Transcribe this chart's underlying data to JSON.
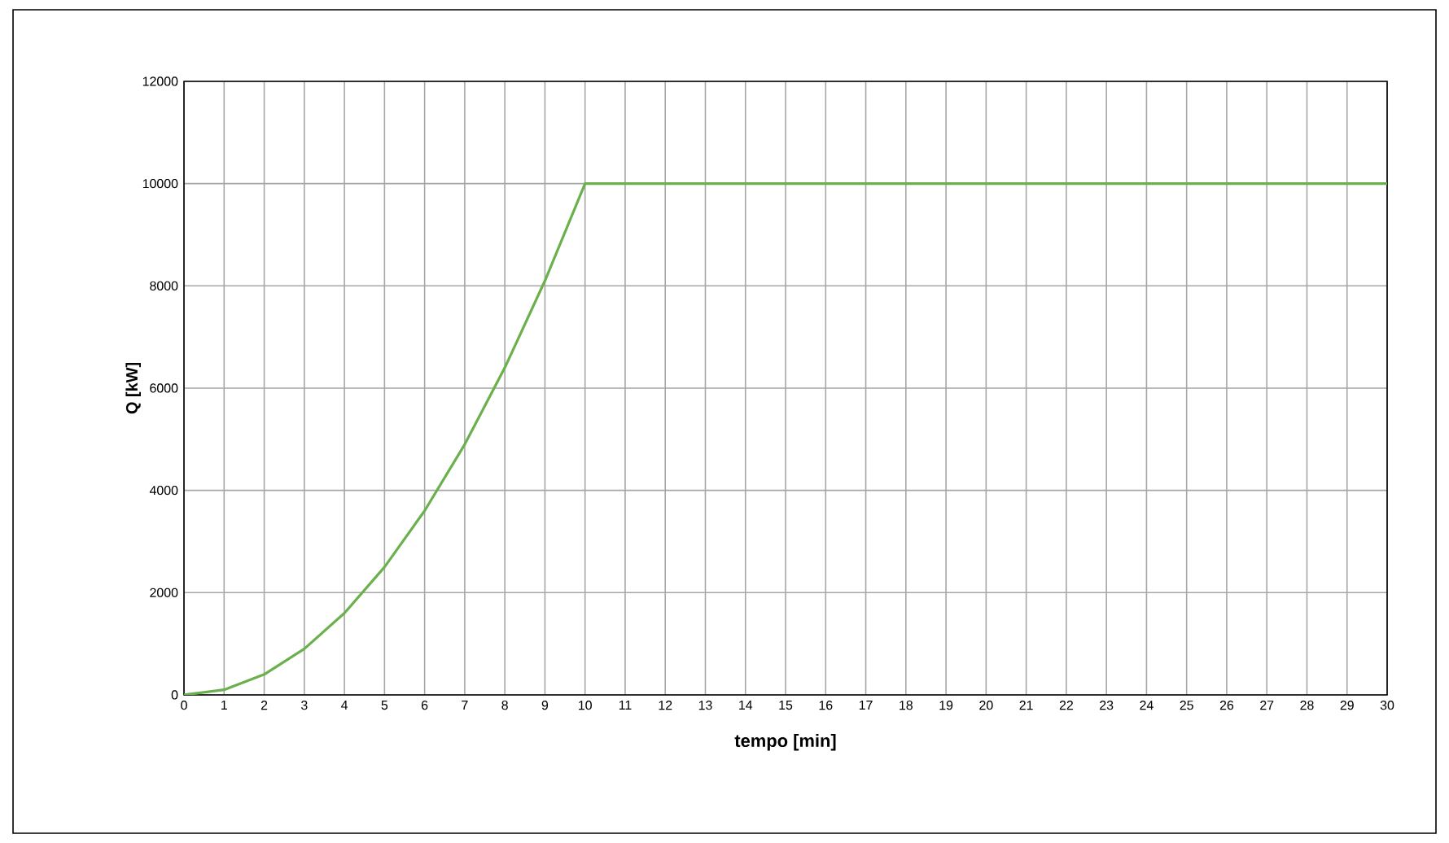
{
  "chart_data": {
    "type": "line",
    "xlabel": "tempo [min]",
    "ylabel": "Q [kW]",
    "x": [
      0,
      1,
      2,
      3,
      4,
      5,
      6,
      7,
      8,
      9,
      10,
      30
    ],
    "series": [
      {
        "color": "#6ab04c",
        "values": [
          0,
          100,
          400,
          900,
          1600,
          2500,
          3600,
          4900,
          6400,
          8100,
          10000,
          10000
        ]
      }
    ],
    "xlim": [
      0,
      30
    ],
    "xticks": [
      0,
      1,
      2,
      3,
      4,
      5,
      6,
      7,
      8,
      9,
      10,
      11,
      12,
      13,
      14,
      15,
      16,
      17,
      18,
      19,
      20,
      21,
      22,
      23,
      24,
      25,
      26,
      27,
      28,
      29,
      30
    ],
    "ylim": [
      0,
      12000
    ],
    "yticks": [
      0,
      2000,
      4000,
      6000,
      8000,
      10000,
      12000
    ],
    "grid": true,
    "marker": "none",
    "line_style": "solid"
  }
}
